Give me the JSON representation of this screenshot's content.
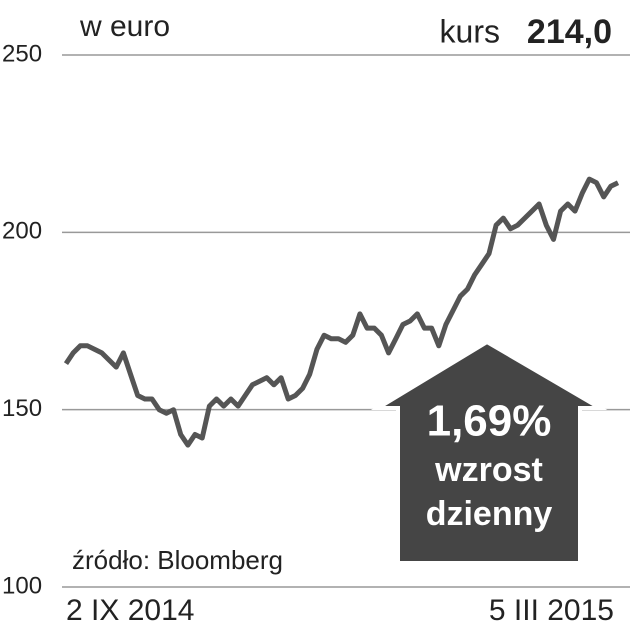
{
  "chart_data": {
    "type": "line",
    "unit_label": "w euro",
    "kurs_label": "kurs",
    "kurs_value": "214,0",
    "source": "źródło: Bloomberg",
    "annotation": {
      "change": "1,69%",
      "line1": "wzrost",
      "line2": "dzienny"
    },
    "color": "#555555",
    "grid": true,
    "ylim": [
      100,
      250
    ],
    "yticks": [
      100,
      150,
      200,
      250
    ],
    "categories": [
      "2 IX 2014",
      null,
      null,
      null,
      null,
      null,
      null,
      null,
      null,
      null,
      null,
      null,
      null,
      null,
      null,
      null,
      null,
      null,
      null,
      null,
      null,
      null,
      null,
      null,
      null,
      null,
      null,
      null,
      null,
      null,
      null,
      null,
      null,
      null,
      null,
      null,
      null,
      null,
      null,
      null,
      null,
      null,
      null,
      null,
      null,
      null,
      null,
      null,
      null,
      null,
      null,
      null,
      null,
      null,
      null,
      null,
      null,
      null,
      null,
      null,
      null,
      null,
      null,
      null,
      null,
      null,
      null,
      null,
      null,
      null,
      null,
      null,
      null,
      null,
      null,
      null,
      null,
      "5 III 2015"
    ],
    "values": [
      163,
      166,
      168,
      168,
      167,
      166,
      164,
      162,
      166,
      160,
      154,
      153,
      153,
      150,
      149,
      150,
      143,
      140,
      143,
      142,
      151,
      153,
      151,
      153,
      151,
      154,
      157,
      158,
      159,
      157,
      159,
      153,
      154,
      156,
      160,
      167,
      171,
      170,
      170,
      169,
      171,
      177,
      173,
      173,
      171,
      166,
      170,
      174,
      175,
      177,
      173,
      173,
      168,
      174,
      178,
      182,
      184,
      188,
      191,
      194,
      202,
      204,
      201,
      202,
      204,
      206,
      208,
      202,
      198,
      206,
      208,
      206,
      211,
      215,
      214,
      210,
      213,
      214
    ]
  }
}
